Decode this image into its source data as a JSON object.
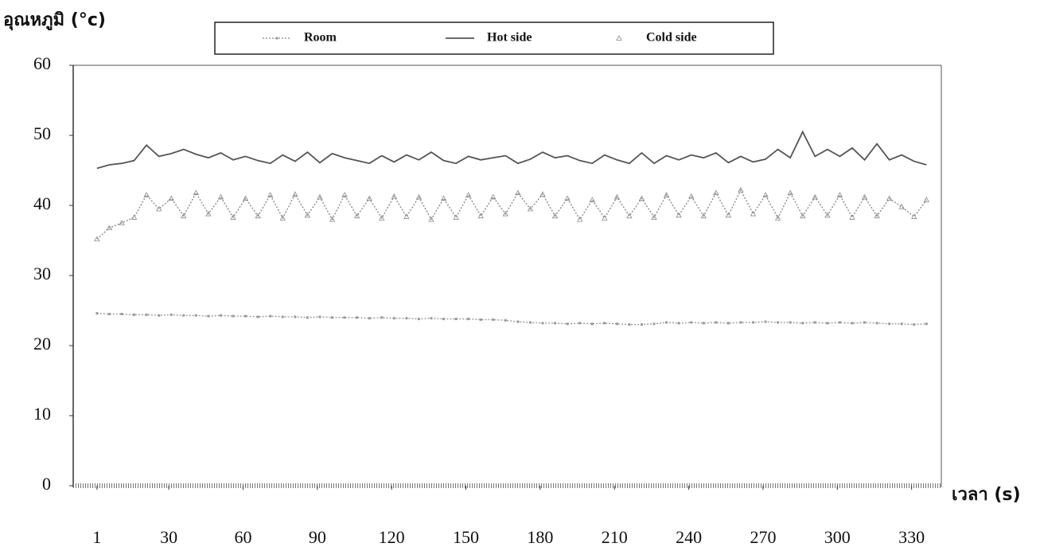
{
  "chart_data": {
    "type": "line",
    "y_label": "อุณหภูมิ (°c)",
    "x_label": "เวลา (s)",
    "xlim": [
      -8.6,
      342
    ],
    "ylim": [
      0,
      60
    ],
    "xticks": [
      1,
      30,
      60,
      90,
      120,
      150,
      180,
      210,
      240,
      270,
      300,
      330
    ],
    "yticks": [
      0,
      10,
      20,
      30,
      40,
      50,
      60
    ],
    "grid": false,
    "legend": "top",
    "x": [
      1,
      6,
      11,
      16,
      21,
      26,
      31,
      36,
      41,
      46,
      51,
      56,
      61,
      66,
      71,
      76,
      81,
      86,
      91,
      96,
      101,
      106,
      111,
      116,
      121,
      126,
      131,
      136,
      141,
      146,
      151,
      156,
      161,
      166,
      171,
      176,
      181,
      186,
      191,
      196,
      201,
      206,
      211,
      216,
      221,
      226,
      231,
      236,
      241,
      246,
      251,
      256,
      261,
      266,
      271,
      276,
      281,
      286,
      291,
      296,
      301,
      306,
      311,
      316,
      321,
      326,
      331,
      336
    ],
    "series": [
      {
        "name": "Room",
        "color": "#9a9a9a",
        "style": "dotted",
        "marker": "square",
        "values": [
          24.6,
          24.5,
          24.5,
          24.4,
          24.4,
          24.3,
          24.4,
          24.3,
          24.3,
          24.2,
          24.3,
          24.2,
          24.2,
          24.1,
          24.2,
          24.1,
          24.1,
          24.0,
          24.1,
          24.0,
          24.0,
          24.0,
          23.9,
          24.0,
          23.9,
          23.9,
          23.8,
          23.9,
          23.8,
          23.8,
          23.8,
          23.7,
          23.7,
          23.6,
          23.4,
          23.3,
          23.2,
          23.2,
          23.1,
          23.2,
          23.1,
          23.2,
          23.1,
          23.0,
          23.0,
          23.1,
          23.3,
          23.2,
          23.3,
          23.2,
          23.3,
          23.2,
          23.3,
          23.3,
          23.4,
          23.3,
          23.3,
          23.2,
          23.3,
          23.2,
          23.3,
          23.2,
          23.3,
          23.2,
          23.1,
          23.1,
          23.0,
          23.1
        ]
      },
      {
        "name": "Hot side",
        "color": "#555555",
        "style": "solid",
        "marker": "none",
        "values": [
          45.3,
          45.8,
          46.0,
          46.4,
          48.6,
          47.0,
          47.4,
          48.0,
          47.3,
          46.8,
          47.5,
          46.5,
          47.0,
          46.4,
          46.0,
          47.2,
          46.3,
          47.6,
          46.1,
          47.4,
          46.8,
          46.4,
          46.0,
          47.1,
          46.2,
          47.2,
          46.5,
          47.6,
          46.4,
          46.0,
          47.0,
          46.5,
          46.8,
          47.1,
          46.0,
          46.6,
          47.6,
          46.8,
          47.1,
          46.4,
          46.0,
          47.2,
          46.5,
          46.0,
          47.5,
          46.0,
          47.1,
          46.5,
          47.2,
          46.8,
          47.5,
          46.1,
          47.0,
          46.2,
          46.6,
          48.0,
          46.8,
          50.5,
          47.0,
          48.0,
          47.0,
          48.2,
          46.5,
          48.8,
          46.5,
          47.2,
          46.3,
          45.8
        ]
      },
      {
        "name": "Cold side",
        "color": "#8a8a8a",
        "style": "dotted",
        "marker": "triangle",
        "values": [
          35.2,
          36.8,
          37.5,
          38.3,
          41.5,
          39.5,
          41.0,
          38.5,
          41.8,
          38.8,
          41.2,
          38.3,
          41.0,
          38.5,
          41.5,
          38.2,
          41.6,
          38.6,
          41.2,
          38.0,
          41.5,
          38.5,
          41.0,
          38.2,
          41.3,
          38.4,
          41.2,
          38.0,
          41.0,
          38.3,
          41.5,
          38.5,
          41.2,
          38.8,
          41.8,
          39.5,
          41.6,
          38.5,
          41.0,
          38.0,
          40.8,
          38.2,
          41.2,
          38.5,
          41.0,
          38.3,
          41.5,
          38.6,
          41.3,
          38.5,
          41.8,
          38.6,
          42.2,
          38.8,
          41.5,
          38.2,
          41.8,
          38.5,
          41.2,
          38.6,
          41.5,
          38.3,
          41.2,
          38.5,
          41.0,
          39.8,
          38.4,
          40.8
        ]
      }
    ]
  }
}
